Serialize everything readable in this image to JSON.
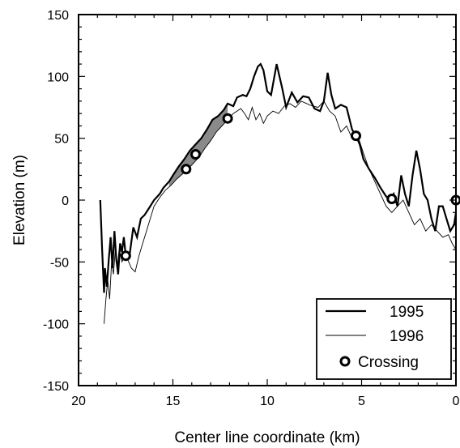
{
  "chart_data": {
    "type": "line",
    "title": "",
    "xlabel": "Center line coordinate (km)",
    "ylabel": "Elevation (m)",
    "xlim": [
      20,
      0
    ],
    "ylim": [
      -150,
      150
    ],
    "x_reversed": true,
    "x_ticks": [
      20,
      15,
      10,
      5,
      0
    ],
    "x_tick_labels": [
      "20",
      "15",
      "10",
      "5",
      "0"
    ],
    "y_ticks": [
      150,
      100,
      50,
      0,
      -50,
      -100,
      -150
    ],
    "y_tick_labels": [
      "150",
      "100",
      "50",
      "0",
      "-50",
      "-100",
      "-150"
    ],
    "grid": false,
    "legend_position": "bottom-right",
    "legend": [
      "1995",
      "1996",
      "Crossing"
    ],
    "series": [
      {
        "name": "1995",
        "style": "thick",
        "x": [
          18.85,
          18.75,
          18.65,
          18.6,
          18.5,
          18.4,
          18.3,
          18.2,
          18.1,
          18.0,
          17.9,
          17.8,
          17.7,
          17.6,
          17.5,
          17.3,
          17.1,
          16.9,
          16.7,
          16.5,
          16.2,
          16.0,
          15.7,
          15.5,
          15.2,
          15.0,
          14.7,
          14.4,
          14.1,
          13.8,
          13.5,
          13.2,
          12.9,
          12.6,
          12.3,
          12.1,
          11.8,
          11.6,
          11.3,
          11.1,
          10.9,
          10.7,
          10.5,
          10.35,
          10.2,
          10.0,
          9.8,
          9.5,
          9.2,
          9.0,
          8.7,
          8.4,
          8.1,
          7.8,
          7.5,
          7.2,
          7.0,
          6.8,
          6.6,
          6.4,
          6.1,
          5.8,
          5.5,
          5.3,
          5.1,
          4.9,
          4.6,
          4.3,
          4.0,
          3.7,
          3.5,
          3.3,
          3.1,
          2.9,
          2.7,
          2.5,
          2.3,
          2.1,
          1.9,
          1.7,
          1.5,
          1.3,
          1.1,
          0.9,
          0.7,
          0.5,
          0.3,
          0.1,
          0.0
        ],
        "y": [
          0,
          -40,
          -75,
          -55,
          -70,
          -48,
          -30,
          -55,
          -25,
          -48,
          -60,
          -35,
          -42,
          -30,
          -45,
          -45,
          -22,
          -30,
          -15,
          -12,
          -5,
          0,
          5,
          10,
          15,
          20,
          27,
          33,
          40,
          45,
          50,
          57,
          65,
          68,
          73,
          78,
          76,
          83,
          85,
          84,
          90,
          100,
          108,
          110,
          105,
          88,
          85,
          110,
          90,
          75,
          87,
          79,
          84,
          83,
          74,
          72,
          80,
          103,
          85,
          74,
          77,
          75,
          57,
          52,
          45,
          33,
          25,
          18,
          10,
          3,
          0,
          5,
          -5,
          20,
          5,
          -5,
          20,
          40,
          25,
          5,
          0,
          -15,
          -25,
          -5,
          -5,
          -15,
          -25,
          -20,
          -10
        ]
      },
      {
        "name": "1996",
        "style": "thin",
        "x": [
          18.65,
          18.55,
          18.45,
          18.35,
          18.25,
          18.15,
          18.05,
          17.95,
          17.85,
          17.7,
          17.55,
          17.4,
          17.2,
          17.0,
          16.8,
          16.6,
          16.4,
          16.2,
          16.0,
          15.7,
          15.4,
          15.1,
          14.8,
          14.5,
          14.2,
          13.9,
          13.6,
          13.3,
          13.0,
          12.7,
          12.4,
          12.1,
          11.8,
          11.6,
          11.4,
          11.2,
          11.0,
          10.8,
          10.6,
          10.4,
          10.2,
          10.0,
          9.7,
          9.4,
          9.1,
          8.8,
          8.5,
          8.2,
          7.9,
          7.6,
          7.3,
          7.0,
          6.7,
          6.4,
          6.1,
          5.8,
          5.5,
          5.2,
          4.9,
          4.6,
          4.3,
          4.0,
          3.7,
          3.4,
          3.1,
          2.8,
          2.5,
          2.2,
          1.9,
          1.6,
          1.3,
          1.0,
          0.7,
          0.4,
          0.2,
          0.0
        ],
        "y": [
          -100,
          -80,
          -65,
          -80,
          -50,
          -60,
          -40,
          -55,
          -40,
          -50,
          -45,
          -48,
          -55,
          -58,
          -45,
          -35,
          -25,
          -15,
          -5,
          2,
          8,
          12,
          17,
          21,
          25,
          30,
          35,
          42,
          48,
          55,
          60,
          65,
          70,
          72,
          74,
          70,
          65,
          75,
          65,
          70,
          62,
          68,
          72,
          70,
          76,
          78,
          75,
          80,
          78,
          76,
          75,
          80,
          72,
          68,
          55,
          60,
          50,
          52,
          38,
          25,
          15,
          5,
          -5,
          -10,
          -5,
          0,
          -10,
          -20,
          -15,
          -25,
          -20,
          -25,
          -30,
          -28,
          -35,
          -40
        ]
      }
    ],
    "crossings": {
      "name": "Crossing",
      "x": [
        17.5,
        14.3,
        13.8,
        12.1,
        5.3,
        3.4,
        0.0
      ],
      "y": [
        -45,
        25,
        37,
        66,
        52,
        1,
        0
      ]
    },
    "shaded_region": {
      "x_from": 15.2,
      "x_to": 12.1,
      "between": [
        "1995",
        "1996"
      ],
      "color": "#808080"
    }
  }
}
